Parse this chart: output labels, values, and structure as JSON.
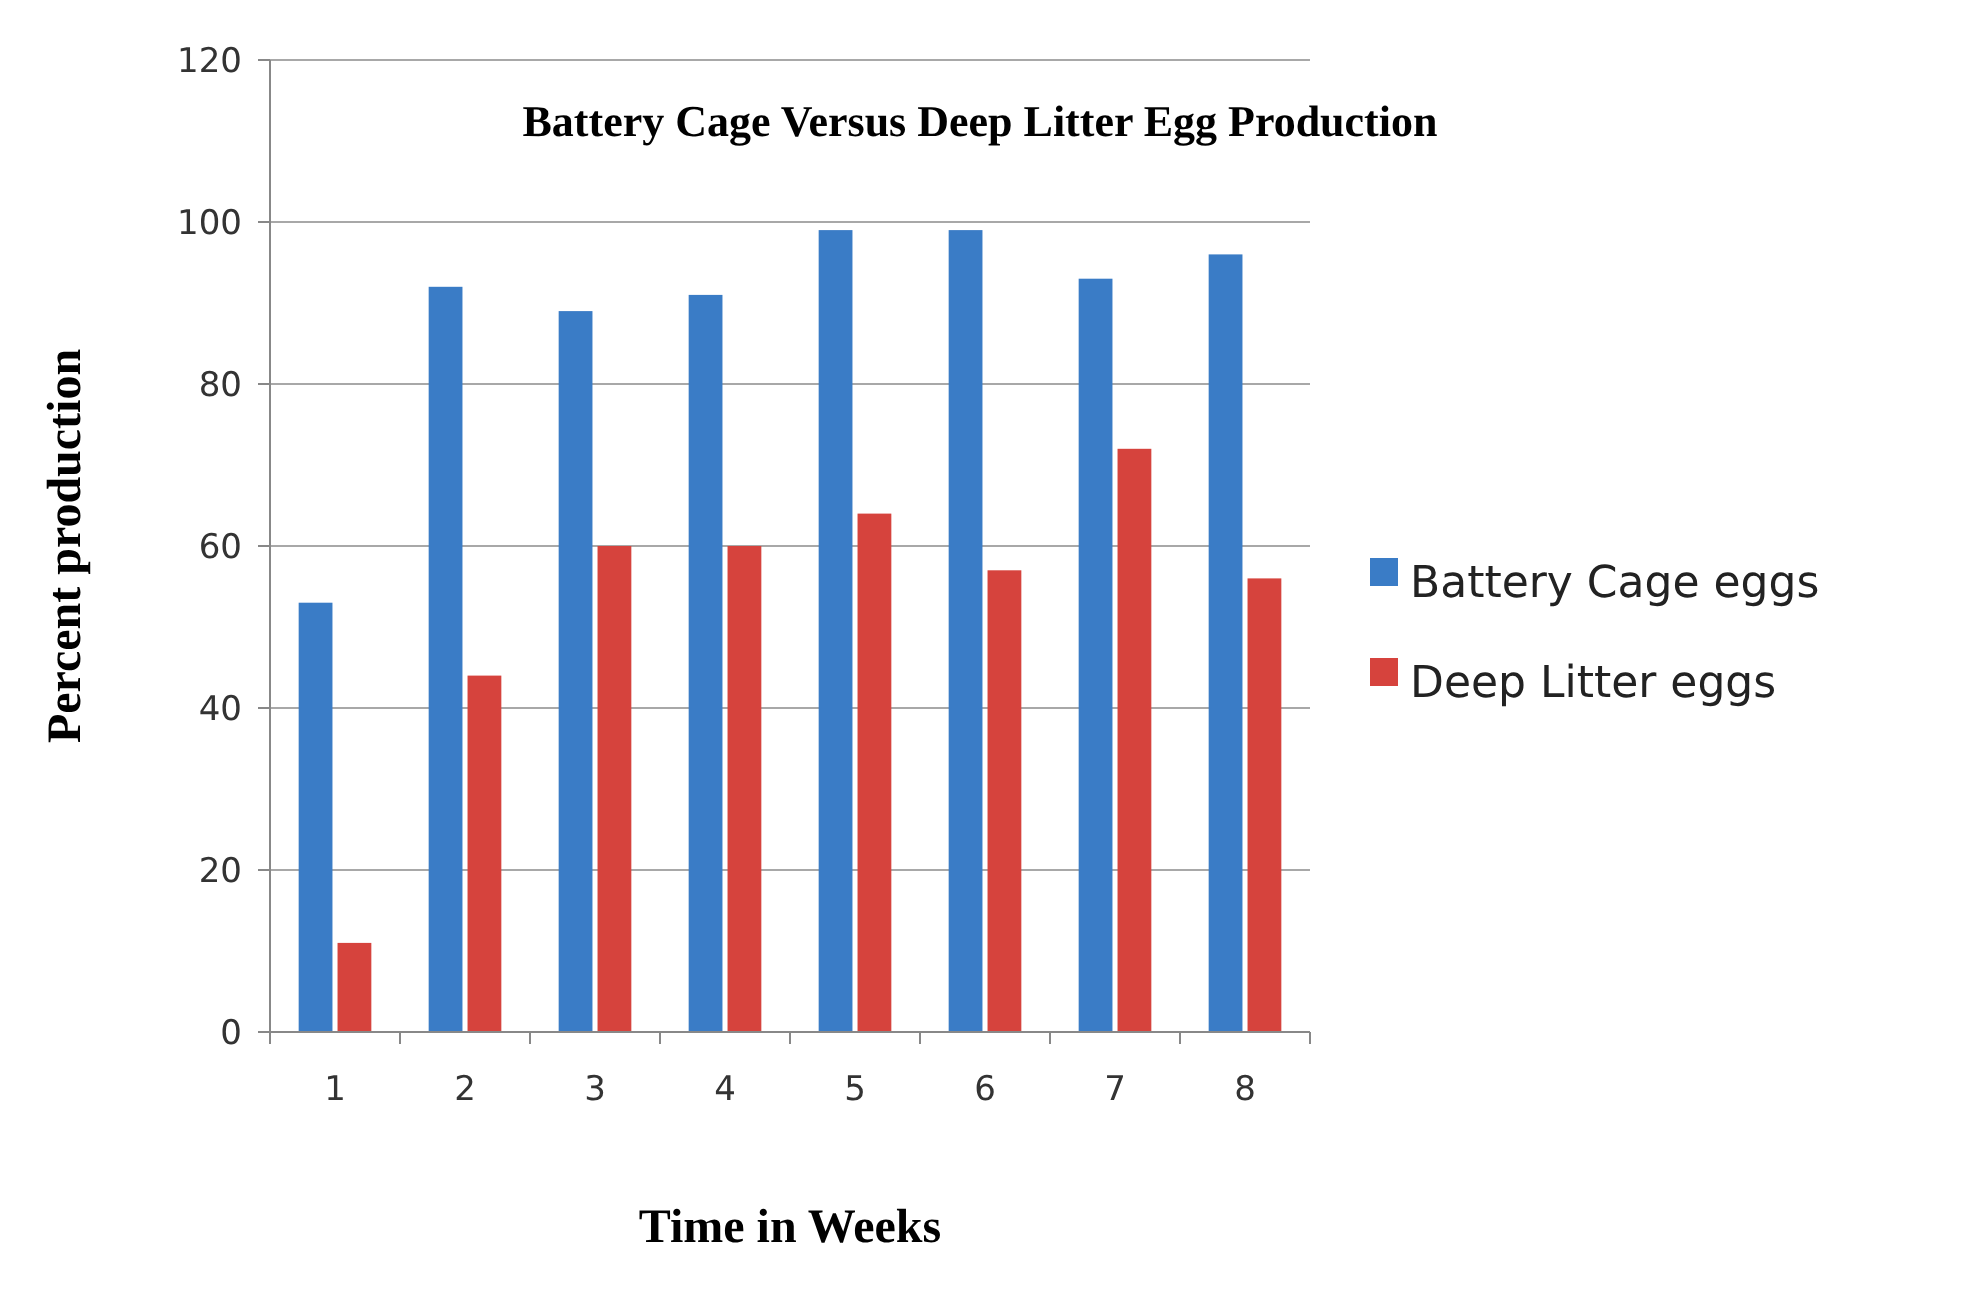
{
  "chart_data": {
    "type": "bar",
    "title": "Battery Cage Versus Deep Litter Egg Production",
    "xlabel": "Time in Weeks",
    "ylabel": "Percent production",
    "categories": [
      "1",
      "2",
      "3",
      "4",
      "5",
      "6",
      "7",
      "8"
    ],
    "series": [
      {
        "name": "Battery Cage eggs",
        "color": "#3a7cc6",
        "values": [
          53,
          92,
          89,
          91,
          99,
          99,
          93,
          96
        ]
      },
      {
        "name": "Deep Litter eggs",
        "color": "#d6433d",
        "values": [
          11,
          44,
          60,
          60,
          64,
          57,
          72,
          56
        ]
      }
    ],
    "ylim": [
      0,
      120
    ],
    "yticks": [
      0,
      20,
      40,
      60,
      80,
      100,
      120
    ],
    "grid": "y",
    "legend": "right"
  }
}
